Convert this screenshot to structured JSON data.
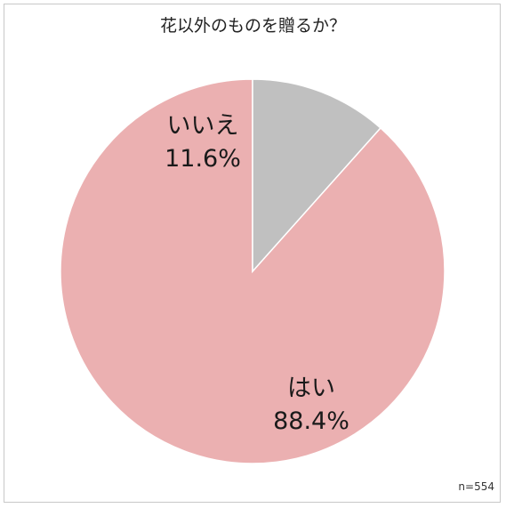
{
  "chart_data": {
    "type": "pie",
    "title": "花以外のものを贈るか？",
    "note": "n=554",
    "slices": [
      {
        "label": "はい",
        "value": 88.4,
        "value_label": "88.4%",
        "color": "#ebb0b1"
      },
      {
        "label": "いいえ",
        "value": 11.6,
        "value_label": "11.6%",
        "color": "#c0c0c0"
      }
    ],
    "start": "12 o'clock",
    "direction": "counterclockwise",
    "slice_border_color": "#ffffff"
  }
}
